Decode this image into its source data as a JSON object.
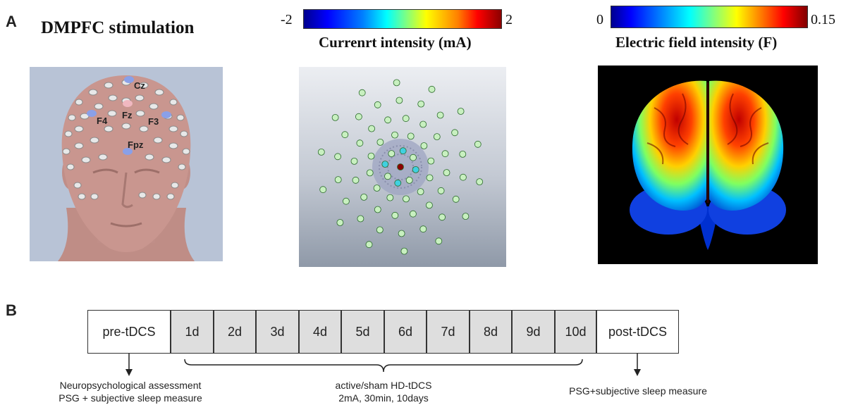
{
  "panel_a": {
    "label": "A",
    "title": "DMPFC stimulation",
    "head_electrodes": [
      "Cz",
      "F4",
      "Fz",
      "F3",
      "Fpz"
    ],
    "current_colorbar": {
      "min": "-2",
      "max": "2",
      "label": "Currenrt intensity (mA)"
    },
    "field_colorbar": {
      "min": "0",
      "max": "0.15",
      "label": "Electric field intensity (F)"
    }
  },
  "panel_b": {
    "label": "B",
    "pre": "pre-tDCS",
    "days": [
      "1d",
      "2d",
      "3d",
      "4d",
      "5d",
      "6d",
      "7d",
      "8d",
      "9d",
      "10d"
    ],
    "post": "post-tDCS",
    "note_pre_line1": "Neuropsychological assessment",
    "note_pre_line2": "PSG + subjective sleep measure",
    "note_mid_line1": "active/sham HD-tDCS",
    "note_mid_line2": "2mA, 30min, 10days",
    "note_post": "PSG+subjective sleep measure"
  },
  "colors": {
    "head_bg": "#b8c3d6",
    "skin": "#c9968f",
    "grid_bg_top": "#e8eaee",
    "grid_bg_bottom": "#8e98a8",
    "brain_bg": "#000000",
    "day_fill": "#dedede"
  }
}
